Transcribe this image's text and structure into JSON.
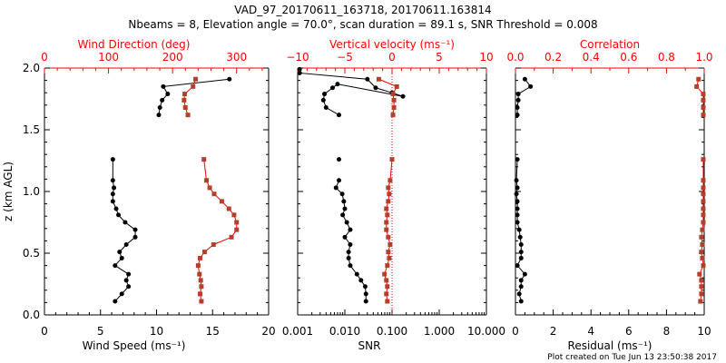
{
  "chart_data": {
    "type": "line",
    "title": "VAD_97_20170611_163718, 20170611.163814",
    "subtitle": "Nbeams = 8, Elevation angle = 70.0°, scan duration = 89.1 s, SNR Threshold = 0.008",
    "footer": "Plot created on Tue Jun 13 23:50:38 2017",
    "ylabel": "z (km AGL)",
    "ylim": [
      0,
      2.0
    ],
    "yticks": [
      "0.0",
      "0.5",
      "1.0",
      "1.5",
      "2.0"
    ],
    "colors": {
      "primary": "#000000",
      "secondary": "#b5402a",
      "axis2": "#ff0000"
    },
    "z": [
      0.11,
      0.17,
      0.23,
      0.28,
      0.33,
      0.4,
      0.46,
      0.51,
      0.57,
      0.63,
      0.69,
      0.75,
      0.81,
      0.86,
      0.92,
      0.98,
      1.03,
      1.09,
      1.26,
      1.62,
      1.68,
      1.74,
      1.79,
      1.85,
      1.91
    ],
    "panels": [
      {
        "bottom_axis": {
          "label": "Wind Speed (ms⁻¹)",
          "range": [
            0,
            20
          ],
          "ticks": [
            "0",
            "5",
            "10",
            "15",
            "20"
          ],
          "scale": "linear"
        },
        "top_axis": {
          "label": "Wind Direction (deg)",
          "range": [
            0,
            350
          ],
          "ticks": [
            "0",
            "100",
            "200",
            "300"
          ],
          "scale": "linear"
        },
        "series": [
          {
            "name": "Wind Speed",
            "axis": "bottom",
            "values": [
              6.3,
              6.9,
              7.5,
              7.3,
              7.5,
              6.3,
              6.9,
              6.7,
              7.3,
              8.1,
              8.1,
              7.2,
              6.6,
              6.4,
              6.1,
              6.1,
              6.2,
              6.1,
              6.1,
              10.2,
              10.3,
              10.5,
              11.0,
              10.6,
              16.5
            ]
          },
          {
            "name": "Wind Direction",
            "axis": "top",
            "values": [
              245,
              243,
              245,
              244,
              242,
              240,
              243,
              250,
              264,
              292,
              300,
              300,
              296,
              288,
              277,
              265,
              258,
              253,
              249,
              224,
              220,
              218,
              219,
              232,
              236
            ]
          }
        ]
      },
      {
        "bottom_axis": {
          "label": "SNR",
          "range": [
            0.001,
            10
          ],
          "ticks": [
            "0.001",
            "0.010",
            "0.100",
            "1.000",
            "10.000"
          ],
          "scale": "log"
        },
        "top_axis": {
          "label": "Vertical velocity (ms⁻¹)",
          "range": [
            -10,
            10
          ],
          "ticks": [
            "−10",
            "−5",
            "0",
            "5",
            "10"
          ],
          "scale": "linear"
        },
        "reference_line": {
          "axis": "top",
          "value": 0
        },
        "series": [
          {
            "name": "SNR",
            "axis": "bottom",
            "values": [
              0.028,
              0.028,
              0.027,
              0.022,
              0.018,
              0.013,
              0.012,
              0.012,
              0.013,
              0.01,
              0.013,
              0.011,
              0.009,
              0.01,
              0.0095,
              0.0088,
              0.0065,
              0.0075,
              0.0075,
              0.009,
              0.0055,
              0.004,
              0.0035,
              0.0036,
              0.009
            ]
          },
          {
            "name": "Vertical velocity",
            "axis": "top",
            "values": [
              -0.5,
              -0.6,
              -0.5,
              -0.6,
              -0.8,
              -0.5,
              -0.3,
              -0.4,
              -0.2,
              -0.4,
              -0.6,
              -0.6,
              -0.5,
              -0.6,
              -0.4,
              -0.3,
              -0.4,
              -0.2,
              0.0,
              0.1,
              0.2,
              0.2,
              0.1,
              0.5,
              -1.4
            ]
          }
        ],
        "extra_snr_points": {
          "z": [
            1.79,
            1.85,
            1.91,
            1.96,
            1.99
          ],
          "values": [
            0.03,
            0.16,
            0.07,
            0.04,
            0.0011
          ]
        }
      },
      {
        "bottom_axis": {
          "label": "Residual (ms⁻¹)",
          "range": [
            0,
            10
          ],
          "ticks": [
            "0",
            "2",
            "4",
            "6",
            "8",
            "10"
          ],
          "scale": "linear"
        },
        "top_axis": {
          "label": "Correlation",
          "range": [
            0.0,
            1.0
          ],
          "ticks": [
            "0.0",
            "0.2",
            "0.4",
            "0.6",
            "0.8",
            "1.0"
          ],
          "scale": "linear"
        },
        "series": [
          {
            "name": "Residual",
            "axis": "bottom",
            "values": [
              0.3,
              0.2,
              0.3,
              0.3,
              0.5,
              0.1,
              0.3,
              0.3,
              0.3,
              0.25,
              0.2,
              0.1,
              0.1,
              0.1,
              0.1,
              0.05,
              0.1,
              0.05,
              0.1,
              0.1,
              0.1,
              0.15,
              0.15,
              0.8,
              0.5
            ]
          },
          {
            "name": "Correlation",
            "axis": "top",
            "values": [
              0.98,
              0.985,
              0.985,
              0.985,
              0.975,
              0.995,
              0.99,
              0.985,
              0.99,
              0.985,
              0.99,
              0.995,
              0.995,
              0.995,
              0.995,
              0.995,
              0.995,
              0.995,
              0.995,
              0.995,
              0.995,
              0.995,
              0.995,
              0.96,
              0.97
            ]
          }
        ]
      }
    ]
  }
}
